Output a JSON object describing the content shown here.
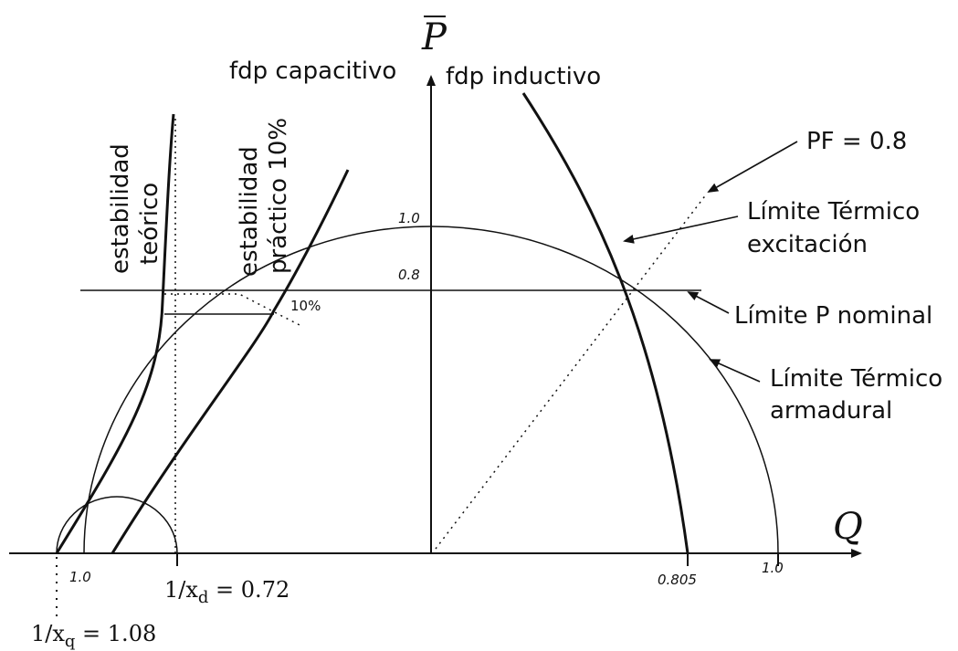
{
  "axes": {
    "vertical_label": "P",
    "horizontal_label": "Q"
  },
  "ticks": {
    "p_1_0": "1.0",
    "p_0_8": "0.8",
    "q_1_0_left": "1.0",
    "q_0_805": "0.805",
    "q_1_0_right": "1.0",
    "ten_percent": "10%"
  },
  "labels": {
    "fdp_capacitivo": "fdp capacitivo",
    "fdp_inductivo": "fdp inductivo",
    "pf": "PF = 0.8",
    "limite_termico_excitacion_1": "Límite Térmico",
    "limite_termico_excitacion_2": "excitación",
    "limite_p_nominal": "Límite P nominal",
    "limite_termico_armadural_1": "Límite Térmico",
    "limite_termico_armadural_2": "armadural",
    "estabilidad_teorico_1": "estabilidad",
    "estabilidad_teorico_2": "teórico",
    "estabilidad_practico_1": "estabilidad",
    "estabilidad_practico_2": "práctico 10%"
  },
  "reactance": {
    "xd_prefix": "1/x",
    "xd_sub": "d",
    "xd_value": " = 0.72",
    "xq_prefix": "1/x",
    "xq_sub": "q",
    "xq_value": " = 1.08"
  }
}
